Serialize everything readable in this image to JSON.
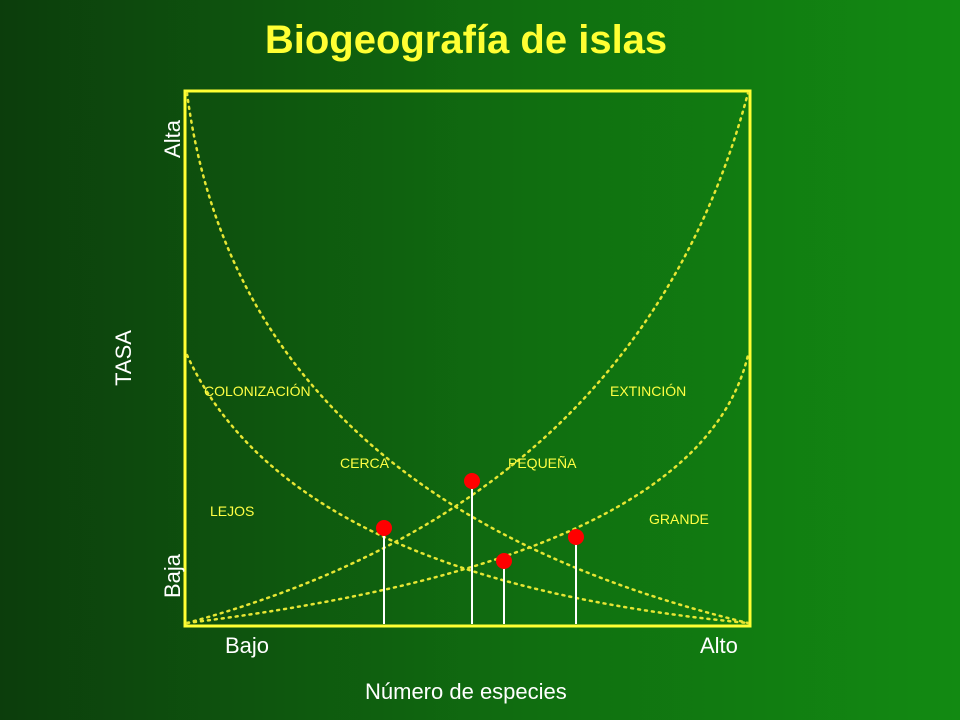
{
  "title": "Biogeografía de islas",
  "axes": {
    "y_title": "TASA",
    "y_high": "Alta",
    "y_low": "Baja",
    "x_title": "Número de especies",
    "x_low": "Bajo",
    "x_high": "Alto"
  },
  "labels": {
    "colonization": "COLONIZACIÓN",
    "extinction": "EXTINCIÓN",
    "near": "CERCA",
    "far": "LEJOS",
    "small": "PEQUEÑA",
    "large": "GRANDE"
  },
  "colors": {
    "background": "#117a11",
    "frame": "#ffff33",
    "curves": "#e6e633",
    "points": "#ff0000",
    "drop_lines": "#ffffff",
    "text": "#ffffff",
    "curve_labels": "#ffff44"
  }
}
